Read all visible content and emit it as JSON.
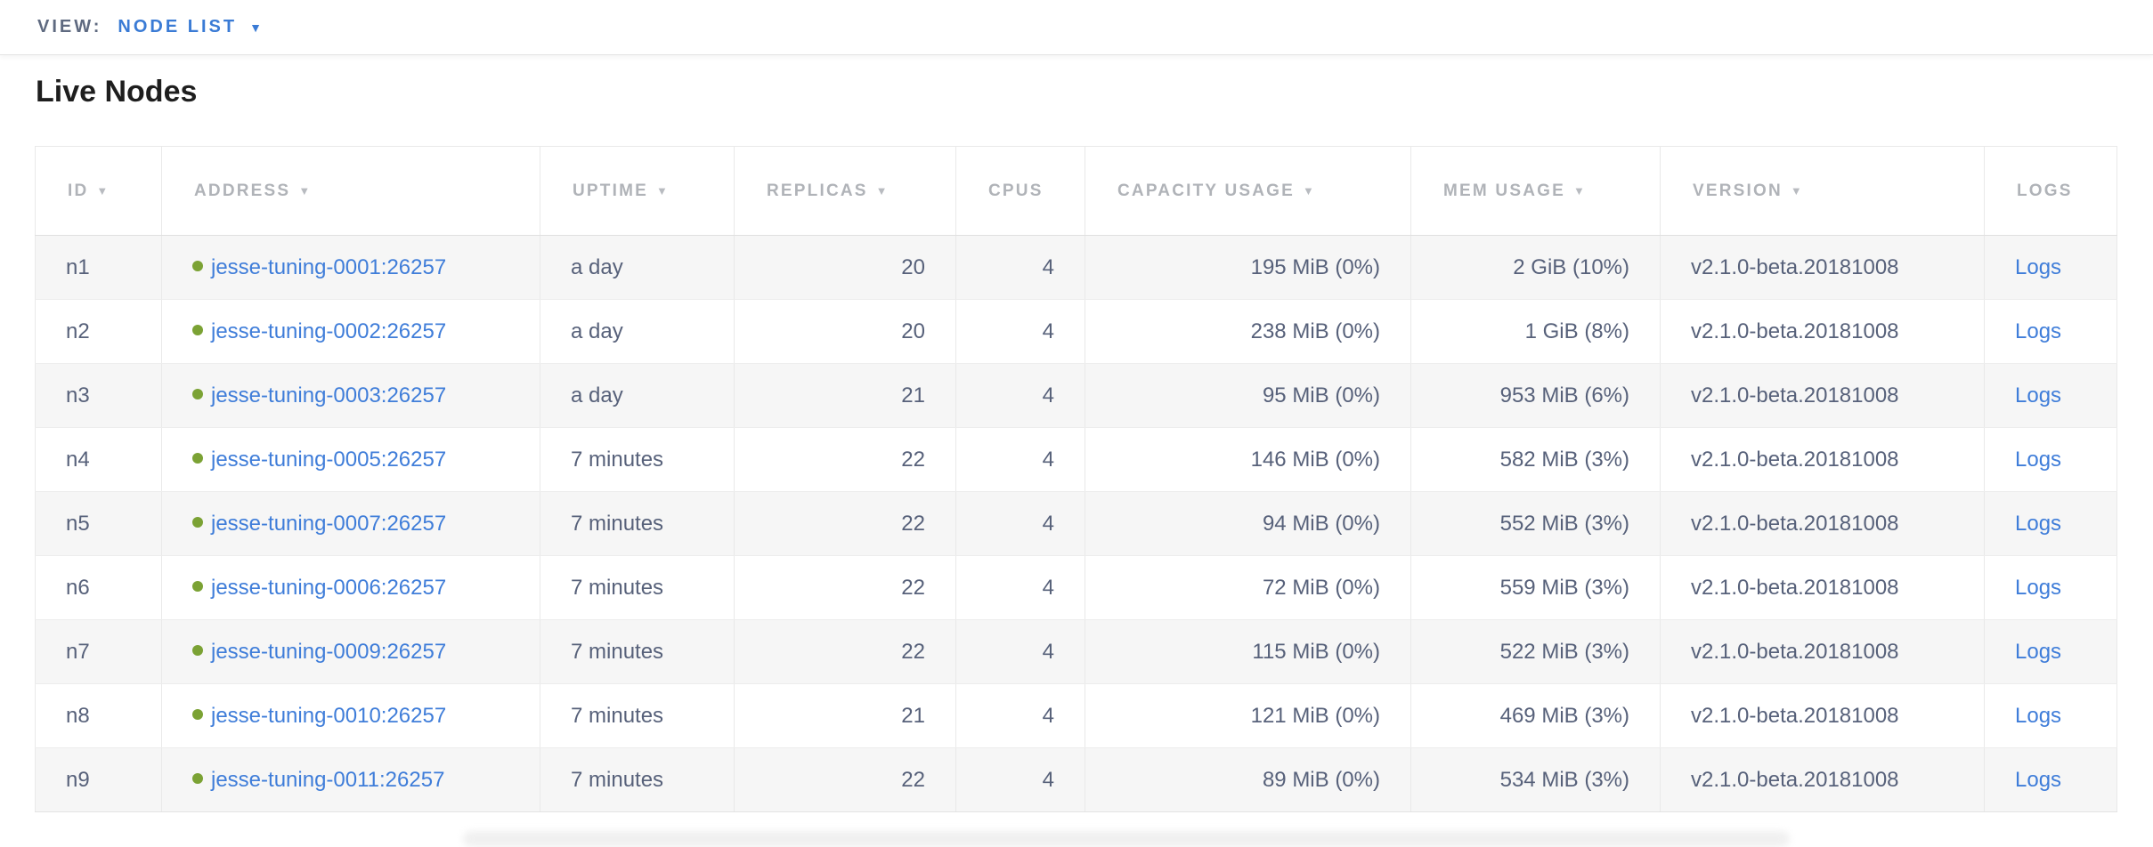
{
  "view_bar": {
    "label": "VIEW:",
    "selected": "NODE LIST",
    "caret": "▼"
  },
  "page": {
    "title": "Live Nodes"
  },
  "colors": {
    "accent_blue": "#3a7bd5",
    "link_blue": "#3f7dd9",
    "live_dot_green": "#7ba234",
    "header_gray": "#b0b3b8",
    "data_slate": "#57617a"
  },
  "table": {
    "sort_arrow": "▼",
    "columns": [
      {
        "key": "id",
        "label": "ID",
        "sortable": true,
        "align": "left"
      },
      {
        "key": "address",
        "label": "ADDRESS",
        "sortable": true,
        "align": "left"
      },
      {
        "key": "uptime",
        "label": "UPTIME",
        "sortable": true,
        "align": "left"
      },
      {
        "key": "replicas",
        "label": "REPLICAS",
        "sortable": true,
        "align": "right"
      },
      {
        "key": "cpus",
        "label": "CPUS",
        "sortable": false,
        "align": "right"
      },
      {
        "key": "capacity",
        "label": "CAPACITY USAGE",
        "sortable": true,
        "align": "right"
      },
      {
        "key": "mem",
        "label": "MEM USAGE",
        "sortable": true,
        "align": "right"
      },
      {
        "key": "version",
        "label": "VERSION",
        "sortable": true,
        "align": "left"
      },
      {
        "key": "logs",
        "label": "LOGS",
        "sortable": false,
        "align": "left"
      }
    ],
    "rows": [
      {
        "id": "n1",
        "status": "live",
        "address": "jesse-tuning-0001:26257",
        "uptime": "a day",
        "replicas": "20",
        "cpus": "4",
        "capacity": "195 MiB (0%)",
        "mem": "2 GiB (10%)",
        "version": "v2.1.0-beta.20181008",
        "logs": "Logs"
      },
      {
        "id": "n2",
        "status": "live",
        "address": "jesse-tuning-0002:26257",
        "uptime": "a day",
        "replicas": "20",
        "cpus": "4",
        "capacity": "238 MiB (0%)",
        "mem": "1 GiB (8%)",
        "version": "v2.1.0-beta.20181008",
        "logs": "Logs"
      },
      {
        "id": "n3",
        "status": "live",
        "address": "jesse-tuning-0003:26257",
        "uptime": "a day",
        "replicas": "21",
        "cpus": "4",
        "capacity": "95 MiB (0%)",
        "mem": "953 MiB (6%)",
        "version": "v2.1.0-beta.20181008",
        "logs": "Logs"
      },
      {
        "id": "n4",
        "status": "live",
        "address": "jesse-tuning-0005:26257",
        "uptime": "7 minutes",
        "replicas": "22",
        "cpus": "4",
        "capacity": "146 MiB (0%)",
        "mem": "582 MiB (3%)",
        "version": "v2.1.0-beta.20181008",
        "logs": "Logs"
      },
      {
        "id": "n5",
        "status": "live",
        "address": "jesse-tuning-0007:26257",
        "uptime": "7 minutes",
        "replicas": "22",
        "cpus": "4",
        "capacity": "94 MiB (0%)",
        "mem": "552 MiB (3%)",
        "version": "v2.1.0-beta.20181008",
        "logs": "Logs"
      },
      {
        "id": "n6",
        "status": "live",
        "address": "jesse-tuning-0006:26257",
        "uptime": "7 minutes",
        "replicas": "22",
        "cpus": "4",
        "capacity": "72 MiB (0%)",
        "mem": "559 MiB (3%)",
        "version": "v2.1.0-beta.20181008",
        "logs": "Logs"
      },
      {
        "id": "n7",
        "status": "live",
        "address": "jesse-tuning-0009:26257",
        "uptime": "7 minutes",
        "replicas": "22",
        "cpus": "4",
        "capacity": "115 MiB (0%)",
        "mem": "522 MiB (3%)",
        "version": "v2.1.0-beta.20181008",
        "logs": "Logs"
      },
      {
        "id": "n8",
        "status": "live",
        "address": "jesse-tuning-0010:26257",
        "uptime": "7 minutes",
        "replicas": "21",
        "cpus": "4",
        "capacity": "121 MiB (0%)",
        "mem": "469 MiB (3%)",
        "version": "v2.1.0-beta.20181008",
        "logs": "Logs"
      },
      {
        "id": "n9",
        "status": "live",
        "address": "jesse-tuning-0011:26257",
        "uptime": "7 minutes",
        "replicas": "22",
        "cpus": "4",
        "capacity": "89 MiB (0%)",
        "mem": "534 MiB (3%)",
        "version": "v2.1.0-beta.20181008",
        "logs": "Logs"
      }
    ]
  }
}
